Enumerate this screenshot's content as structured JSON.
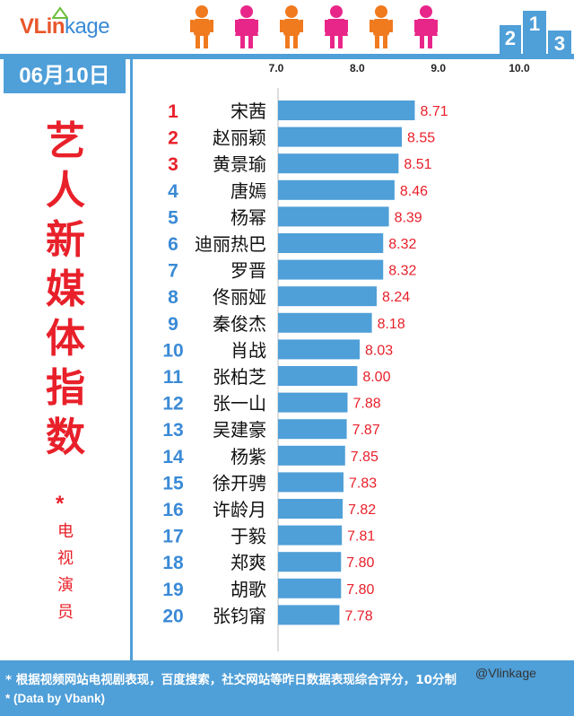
{
  "header": {
    "logo_text_a": "VLin",
    "logo_text_b": "kage",
    "people_icons": [
      "male-icon",
      "female-icon",
      "male-icon",
      "female-icon",
      "male-icon",
      "female-icon"
    ],
    "podium_labels": [
      "2",
      "1",
      "3"
    ]
  },
  "left_panel": {
    "date": "06月10日",
    "title_chars": [
      "艺",
      "人",
      "新",
      "媒",
      "体",
      "指",
      "数"
    ],
    "star": "*",
    "subtitle_chars": [
      "电",
      "视",
      "演",
      "员"
    ]
  },
  "footer": {
    "note1": "* 根据视频网站电视剧表现，百度搜索，社交网站等昨日数据表现综合评分，10分制",
    "note2": "* (Data by Vbank)",
    "watermark": "@Vlinkage"
  },
  "colors": {
    "accent_blue": "#4f9fd8",
    "rank_red": "#e8202a",
    "value_red": "#e8202a"
  },
  "chart_data": {
    "type": "bar",
    "orientation": "horizontal",
    "xlim": [
      6.0,
      10.0
    ],
    "ticks": [
      "7.0",
      "8.0",
      "9.0",
      "10.0"
    ],
    "tick_values": [
      7,
      8,
      9,
      10
    ],
    "ranks": [
      "1",
      "2",
      "3",
      "4",
      "5",
      "6",
      "7",
      "8",
      "9",
      "10",
      "11",
      "12",
      "13",
      "14",
      "15",
      "16",
      "17",
      "18",
      "19",
      "20"
    ],
    "categories": [
      "宋茜",
      "赵丽颖",
      "黄景瑜",
      "唐嫣",
      "杨幂",
      "迪丽热巴",
      "罗晋",
      "佟丽娅",
      "秦俊杰",
      "肖战",
      "张柏芝",
      "张一山",
      "吴建豪",
      "杨紫",
      "徐开骋",
      "许龄月",
      "于毅",
      "郑爽",
      "胡歌",
      "张钧甯"
    ],
    "values": [
      8.71,
      8.55,
      8.51,
      8.46,
      8.39,
      8.32,
      8.32,
      8.24,
      8.18,
      8.03,
      8.0,
      7.88,
      7.87,
      7.85,
      7.83,
      7.82,
      7.81,
      7.8,
      7.8,
      7.78
    ],
    "value_labels": [
      "8.71",
      "8.55",
      "8.51",
      "8.46",
      "8.39",
      "8.32",
      "8.32",
      "8.24",
      "8.18",
      "8.03",
      "8.00",
      "7.88",
      "7.87",
      "7.85",
      "7.83",
      "7.82",
      "7.81",
      "7.80",
      "7.80",
      "7.78"
    ],
    "grid": false
  }
}
